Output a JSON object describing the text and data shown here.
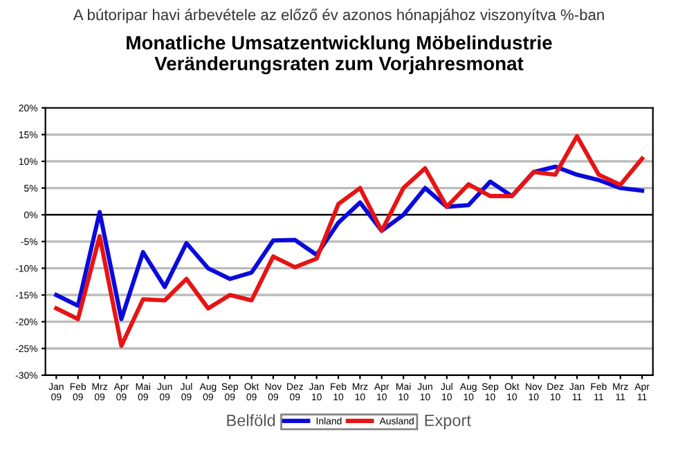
{
  "chart_data": {
    "type": "line",
    "title": "A bútoripar havi árbevétele az előző év azonos hónapjához viszonyítva %-ban",
    "subtitle": "Monatliche Umsatzentwicklung Möbelindustrie\nVeränderungsraten zum Vorjahresmonat",
    "categories": [
      "Jan\n09",
      "Feb\n09",
      "Mrz\n09",
      "Apr\n09",
      "Mai\n09",
      "Jun\n09",
      "Jul\n09",
      "Aug\n09",
      "Sep\n09",
      "Okt\n09",
      "Nov\n09",
      "Dez\n09",
      "Jan\n10",
      "Feb\n10",
      "Mrz\n10",
      "Apr\n10",
      "Mai\n10",
      "Jun\n10",
      "Jul\n10",
      "Aug\n10",
      "Sep\n10",
      "Okt\n10",
      "Nov\n10",
      "Dez\n10",
      "Jan\n11",
      "Feb\n11",
      "Mrz\n11",
      "Apr\n11"
    ],
    "series": [
      {
        "name": "Inland",
        "color": "#0a0adc",
        "values": [
          -15,
          -17,
          0.5,
          -19.5,
          -7,
          -13.5,
          -5.3,
          -10,
          -12,
          -10.8,
          -4.8,
          -4.7,
          -7.5,
          -1.5,
          2.3,
          -3,
          0,
          5,
          1.5,
          1.8,
          6.2,
          3.5,
          8,
          9,
          7.5,
          6.5,
          5,
          4.5
        ]
      },
      {
        "name": "Ausland",
        "color": "#e61414",
        "values": [
          -17.5,
          -19.5,
          -4,
          -24.5,
          -15.8,
          -16,
          -12,
          -17.5,
          -15,
          -16,
          -7.8,
          -9.8,
          -8.2,
          2,
          5,
          -3,
          5,
          8.7,
          1.5,
          5.7,
          3.5,
          3.5,
          8,
          7.5,
          14.7,
          7.5,
          5.6,
          10.5
        ]
      }
    ],
    "ylim": [
      -30,
      20
    ],
    "yticks": [
      {
        "value": -30,
        "label": "-30%"
      },
      {
        "value": -25,
        "label": "-25%"
      },
      {
        "value": -20,
        "label": "-20%"
      },
      {
        "value": -15,
        "label": "-15%"
      },
      {
        "value": -10,
        "label": "-10%"
      },
      {
        "value": -5,
        "label": "-5%"
      },
      {
        "value": 0,
        "label": "0%"
      },
      {
        "value": 5,
        "label": "5%"
      },
      {
        "value": 10,
        "label": "10%"
      },
      {
        "value": 15,
        "label": "15%"
      },
      {
        "value": 20,
        "label": "20%"
      }
    ],
    "grid": "y",
    "legend": "bottom",
    "marker": "none",
    "line_style": "solid",
    "annotations": [
      "Belföld",
      "Export"
    ]
  }
}
